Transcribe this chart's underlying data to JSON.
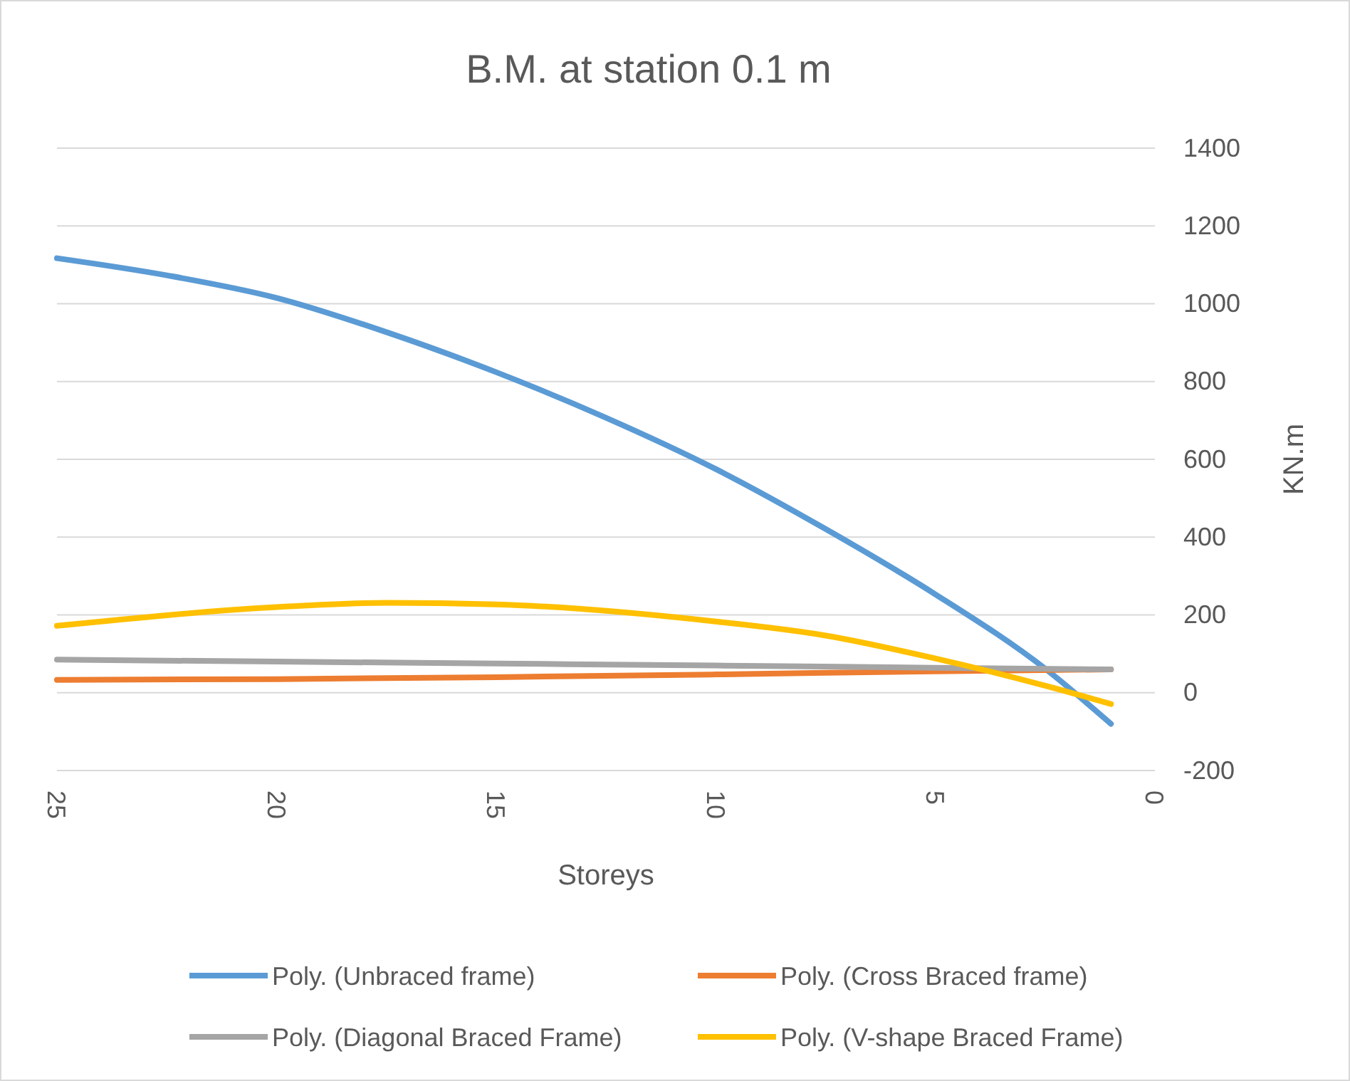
{
  "chart_data": {
    "type": "line",
    "title": "B.M. at station 0.1 m",
    "xlabel": "Storeys",
    "ylabel": "KN.m",
    "xlim": [
      25,
      0
    ],
    "xticks": [
      25,
      20,
      15,
      10,
      5,
      0
    ],
    "ylim": [
      -200,
      1400
    ],
    "yticks": [
      -200,
      0,
      200,
      400,
      600,
      800,
      1000,
      1200,
      1400
    ],
    "grid": "y",
    "legend": "bottom",
    "marker": "none",
    "line_style": "solid",
    "series": [
      {
        "name": "Poly. (Unbraced frame)",
        "color": "#5b9bd5",
        "x": [
          25,
          22.5,
          20,
          17.5,
          15,
          12.5,
          10,
          7.5,
          5,
          2.5,
          1
        ],
        "values": [
          1117,
          1073,
          1015,
          927,
          824,
          707,
          575,
          421,
          253,
          62,
          -80
        ]
      },
      {
        "name": "Poly. (Cross Braced frame)",
        "color": "#ed7d31",
        "x": [
          25,
          20,
          15,
          10,
          5,
          1
        ],
        "values": [
          33,
          35,
          40,
          47,
          55,
          60
        ]
      },
      {
        "name": "Poly. (Diagonal Braced Frame)",
        "color": "#a5a5a5",
        "x": [
          25,
          20,
          15,
          10,
          5,
          1
        ],
        "values": [
          85,
          80,
          75,
          70,
          64,
          60
        ]
      },
      {
        "name": "Poly. (V-shape Braced Frame)",
        "color": "#ffc000",
        "x": [
          25,
          20,
          17.5,
          15,
          10,
          7.5,
          5,
          2.5,
          1
        ],
        "values": [
          172,
          220,
          231,
          227,
          183,
          147,
          88,
          18,
          -29
        ]
      }
    ]
  }
}
